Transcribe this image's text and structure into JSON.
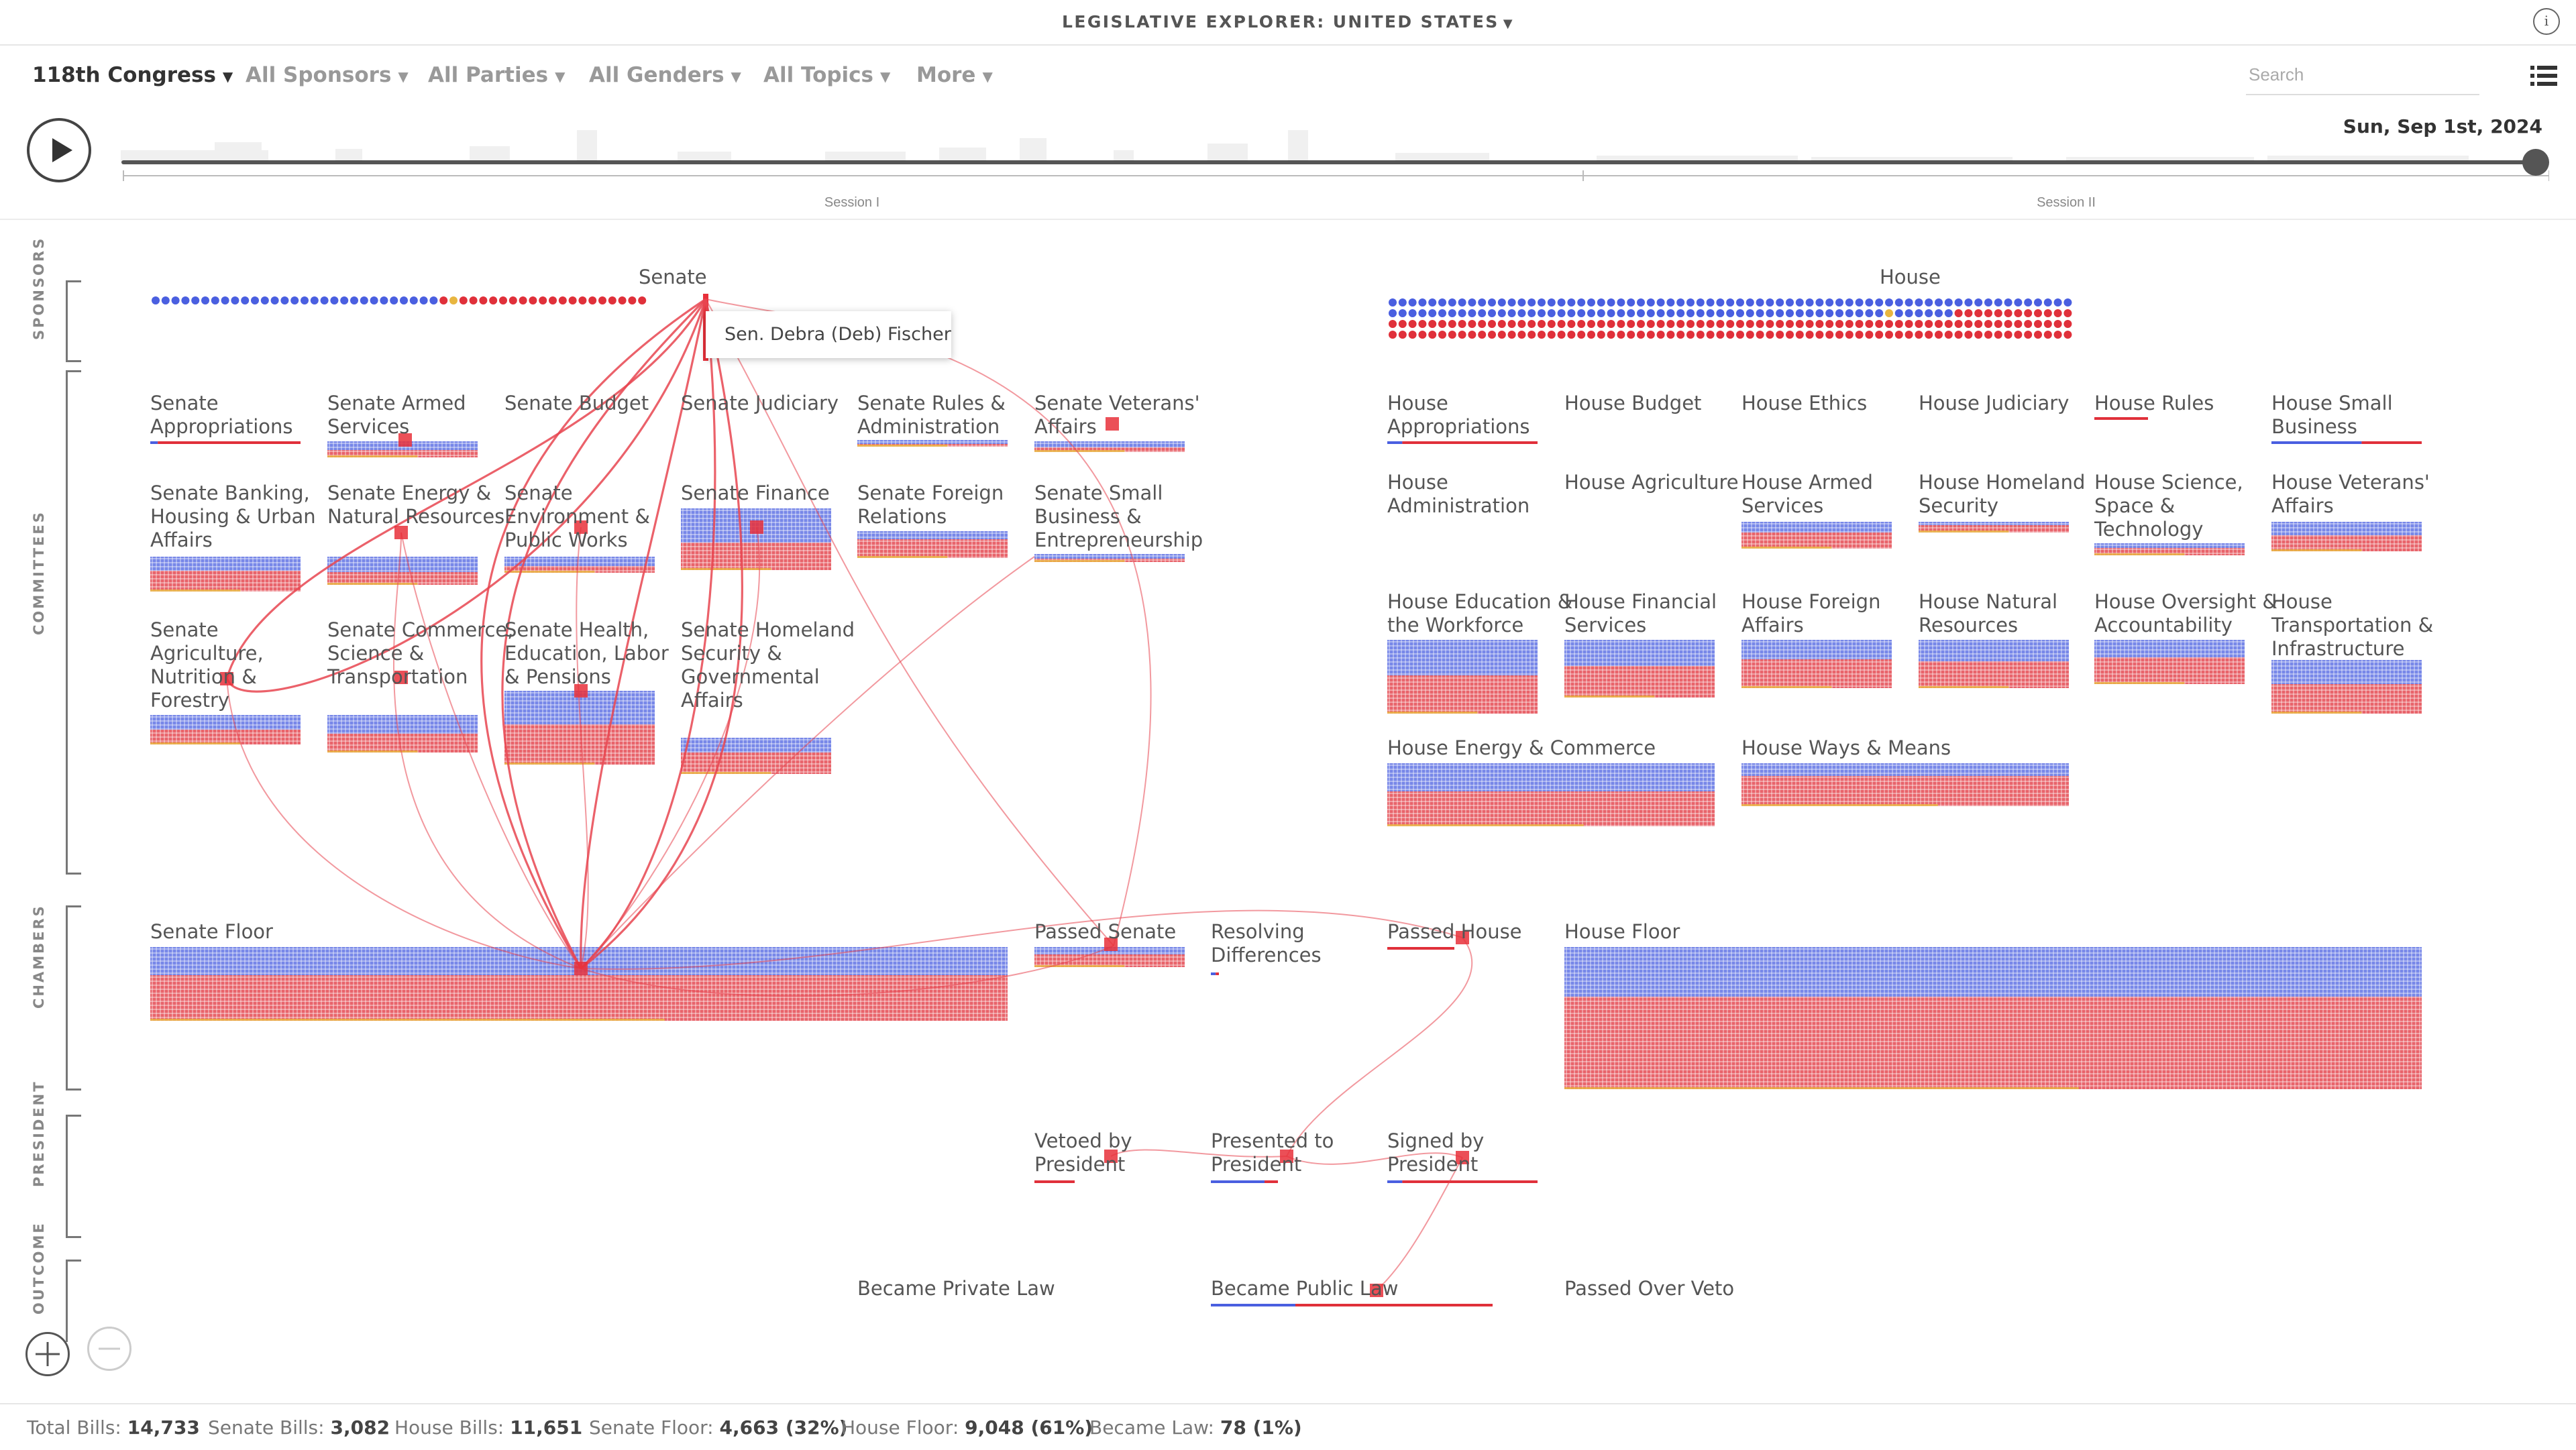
{
  "header": {
    "title": "LEGISLATIVE EXPLORER: UNITED STATES",
    "info_icon": "info-icon"
  },
  "filters": [
    {
      "label": "118th Congress",
      "active": true
    },
    {
      "label": "All Sponsors",
      "active": false
    },
    {
      "label": "All Parties",
      "active": false
    },
    {
      "label": "All Genders",
      "active": false
    },
    {
      "label": "All Topics",
      "active": false
    },
    {
      "label": "More",
      "active": false
    }
  ],
  "search": {
    "placeholder": "Search",
    "value": ""
  },
  "timeline": {
    "date": "Sun, Sep 1st, 2024",
    "sessions": [
      "Session I",
      "Session II"
    ],
    "progress": 1.0
  },
  "stages": [
    "SPONSORS",
    "COMMITTEES",
    "CHAMBERS",
    "PRESIDENT",
    "OUTCOME"
  ],
  "chambers": {
    "senate": "Senate",
    "house": "House"
  },
  "tooltip": "Sen. Debra (Deb) Fischer",
  "senate_committees": [
    "Senate Appropriations",
    "Senate Armed Services",
    "Senate Budget",
    "Senate Judiciary",
    "Senate Rules & Administration",
    "Senate Veterans' Affairs",
    "Senate Banking, Housing & Urban Affairs",
    "Senate Energy & Natural Resources",
    "Senate Environment & Public Works",
    "Senate Finance",
    "Senate Foreign Relations",
    "Senate Small Business & Entrepreneurship",
    "Senate Agriculture, Nutrition & Forestry",
    "Senate Commerce, Science & Transportation",
    "Senate Health, Education, Labor & Pensions",
    "Senate Homeland Security & Governmental Affairs"
  ],
  "house_committees": [
    "House Appropriations",
    "House Budget",
    "House Ethics",
    "House Judiciary",
    "House Rules",
    "House Small Business",
    "House Administration",
    "House Agriculture",
    "House Armed Services",
    "House Homeland Security",
    "House Science, Space & Technology",
    "House Veterans' Affairs",
    "House Education & the Workforce",
    "House Financial Services",
    "House Foreign Affairs",
    "House Natural Resources",
    "House Oversight & Accountability",
    "House Transportation & Infrastructure",
    "House Energy & Commerce",
    "House Ways & Means"
  ],
  "floor_nodes": [
    "Senate Floor",
    "Passed Senate",
    "Resolving Differences",
    "Passed House",
    "House Floor"
  ],
  "president_nodes": [
    "Vetoed by President",
    "Presented to President",
    "Signed by President"
  ],
  "outcome_nodes": [
    "Became Private Law",
    "Became Public Law",
    "Passed Over Veto"
  ],
  "stats": [
    {
      "label": "Total Bills:",
      "value": "14,733"
    },
    {
      "label": "Senate Bills:",
      "value": "3,082"
    },
    {
      "label": "House Bills:",
      "value": "11,651"
    },
    {
      "label": "Senate Floor:",
      "value": "4,663 (32%)"
    },
    {
      "label": "House Floor:",
      "value": "9,048 (61%)"
    },
    {
      "label": "Became Law:",
      "value": "78 (1%)"
    }
  ],
  "colors": {
    "democrat": "#4a5fe0",
    "republican": "#e0303a",
    "independent": "#e8b640",
    "path": "#e84550",
    "highlight": "#e8303a"
  }
}
